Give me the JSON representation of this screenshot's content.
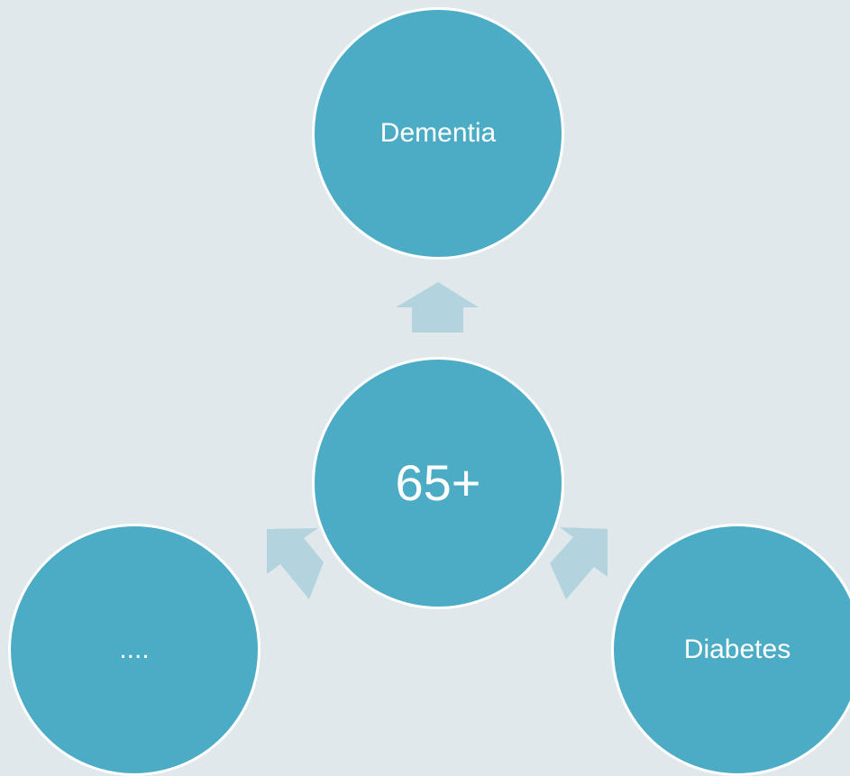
{
  "diagram": {
    "center": {
      "label": "65+"
    },
    "nodes": [
      {
        "label": "Dementia"
      },
      {
        "label": "...."
      },
      {
        "label": "Diabetes"
      }
    ],
    "colors": {
      "background": "#e1e8eb",
      "node_fill": "#4cacc6",
      "node_border": "#ffffff",
      "arrow_fill": "#b3d4de",
      "text": "#ffffff"
    }
  }
}
